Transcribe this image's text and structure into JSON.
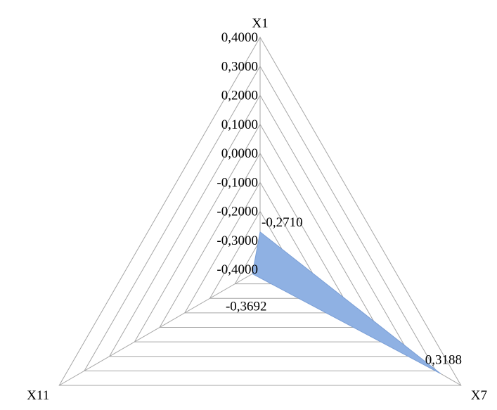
{
  "chart_data": {
    "type": "radar",
    "axes": [
      "X1",
      "X7",
      "X11"
    ],
    "radial_ticks": [
      "-0,4000",
      "-0,3000",
      "-0,2000",
      "-0,1000",
      "0,0000",
      "0,1000",
      "0,2000",
      "0,3000",
      "0,4000"
    ],
    "rlim": [
      -0.4,
      0.4
    ],
    "series": [
      {
        "values": [
          -0.271,
          0.3188,
          -0.3692
        ],
        "labels": [
          "-0,2710",
          "0,3188",
          "-0,3692"
        ]
      }
    ],
    "grid": true,
    "legend": "none",
    "colors": {
      "fill": "#8fb1e3",
      "stroke": "#7b9fd6",
      "grid": "#a6a6a6"
    }
  }
}
